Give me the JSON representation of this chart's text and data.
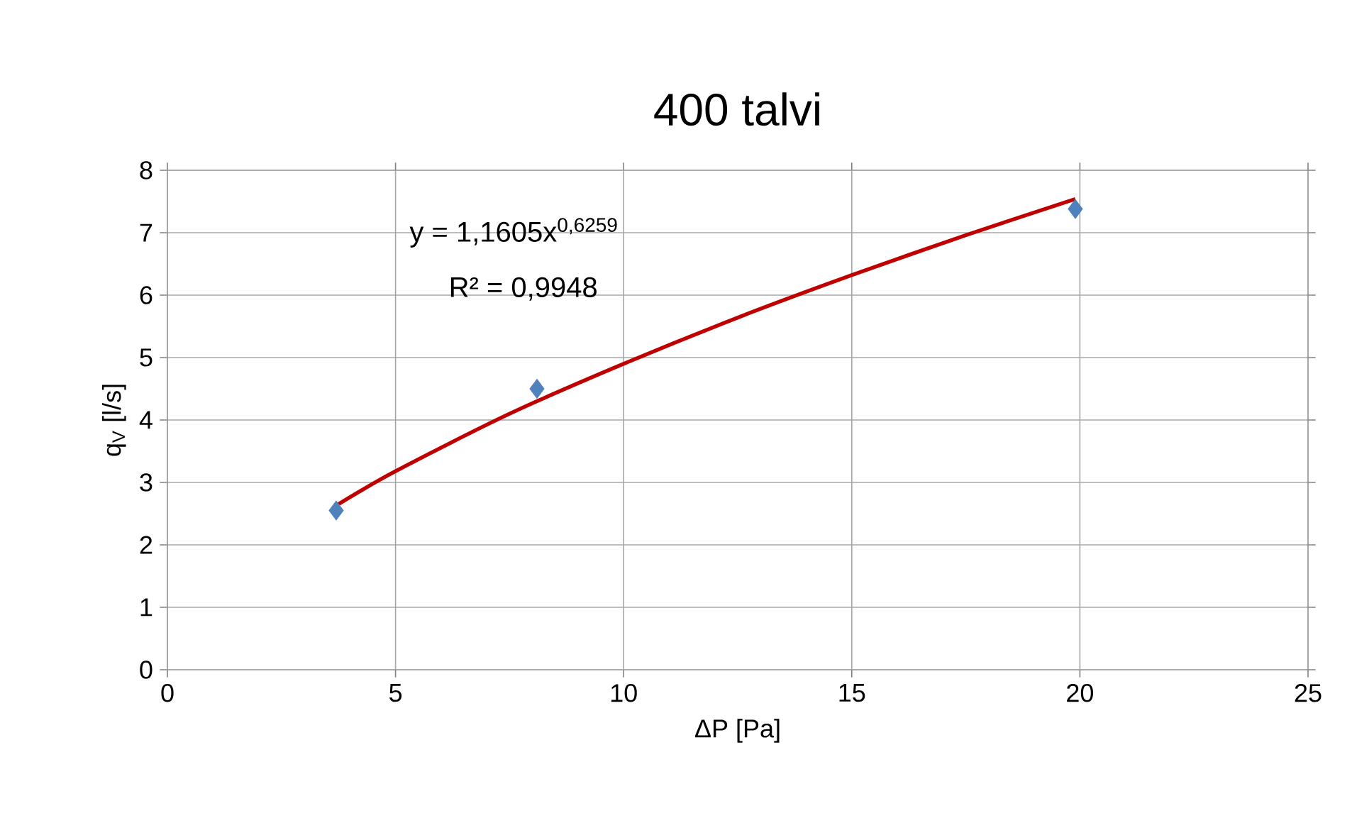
{
  "chart_data": {
    "type": "scatter",
    "title": "400 talvi",
    "xlabel": "ΔP [Pa]",
    "ylabel": "q$_{V}$ [l/s]",
    "series": [
      {
        "type": "scatter",
        "color": "#4f81bd",
        "marker": "diamond",
        "x": [
          3.7,
          8.1,
          19.9
        ],
        "values": [
          2.55,
          4.5,
          7.38
        ]
      },
      {
        "type": "line",
        "color": "#c00000",
        "line_style": "solid",
        "x": [
          3.7,
          5,
          7.5,
          10,
          12.5,
          15,
          17.5,
          19.9
        ],
        "values": [
          2.63,
          3.18,
          4.1,
          4.9,
          5.64,
          6.32,
          6.96,
          7.54
        ]
      }
    ],
    "annotations": [
      "y = 1,1605x$^{0,6259}$",
      "R² = 0,9948"
    ],
    "xlim": [
      0,
      25
    ],
    "ylim": [
      0,
      8
    ],
    "xticks": [
      0,
      5,
      10,
      15,
      20,
      25
    ],
    "yticks": [
      0,
      1,
      2,
      3,
      4,
      5,
      6,
      7,
      8
    ],
    "grid": true
  }
}
